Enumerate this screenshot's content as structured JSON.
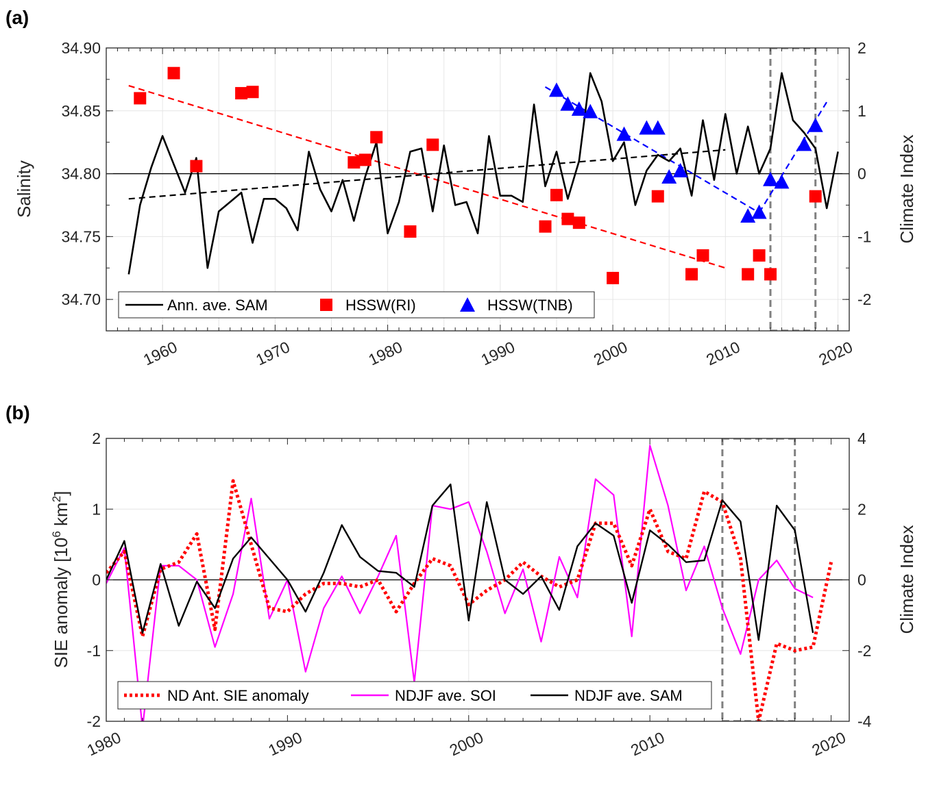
{
  "chart_data": [
    {
      "panel": "(a)",
      "type": "line",
      "xlim": [
        1955,
        2021
      ],
      "xticks": [
        1960,
        1970,
        1980,
        1990,
        2000,
        2010,
        2020
      ],
      "ylabel": "Salinity",
      "ylim": [
        34.675,
        34.9
      ],
      "yticks": [
        "34.70",
        "34.75",
        "34.80",
        "34.85",
        "34.90"
      ],
      "y2label": "Climate Index",
      "y2lim": [
        -2.5,
        2
      ],
      "y2ticks": [
        "-2",
        "-1",
        "0",
        "1",
        "2"
      ],
      "legend": [
        "Ann. ave. SAM",
        "HSSW(RI)",
        "HSSW(TNB)"
      ],
      "sam_annual": {
        "name": "Ann. ave. SAM",
        "axis": "right",
        "color": "#000000",
        "x": [
          1957,
          1958,
          1959,
          1960,
          1961,
          1962,
          1963,
          1964,
          1965,
          1966,
          1967,
          1968,
          1969,
          1970,
          1971,
          1972,
          1973,
          1974,
          1975,
          1976,
          1977,
          1978,
          1979,
          1980,
          1981,
          1982,
          1983,
          1984,
          1985,
          1986,
          1987,
          1988,
          1989,
          1990,
          1991,
          1992,
          1993,
          1994,
          1995,
          1996,
          1997,
          1998,
          1999,
          2000,
          2001,
          2002,
          2003,
          2004,
          2005,
          2006,
          2007,
          2008,
          2009,
          2010,
          2011,
          2012,
          2013,
          2014,
          2015,
          2016,
          2017,
          2018,
          2019,
          2020
        ],
        "y": [
          -1.6,
          -0.5,
          0.1,
          0.6,
          0.15,
          -0.3,
          0.25,
          -1.5,
          -0.6,
          -0.45,
          -0.3,
          -1.1,
          -0.4,
          -0.4,
          -0.55,
          -0.9,
          0.35,
          -0.25,
          -0.6,
          -0.1,
          -0.75,
          -0.05,
          0.5,
          -0.95,
          -0.45,
          0.35,
          0.4,
          -0.6,
          0.45,
          -0.5,
          -0.45,
          -0.95,
          0.6,
          -0.35,
          -0.35,
          -0.45,
          1.1,
          -0.2,
          0.35,
          -0.4,
          0.2,
          1.6,
          1.15,
          0.2,
          0.5,
          -0.5,
          0.05,
          0.3,
          0.2,
          0.4,
          -0.35,
          0.85,
          -0.1,
          0.95,
          0.0,
          0.75,
          0.0,
          0.4,
          1.6,
          0.85,
          0.65,
          0.4,
          -0.55,
          0.35
        ]
      },
      "sam_trend": {
        "name": "SAM trend",
        "axis": "right",
        "x": [
          1957,
          2010
        ],
        "y": [
          -0.4,
          0.38
        ],
        "color": "#000000"
      },
      "hssw_ri": {
        "name": "HSSW(RI)",
        "axis": "left",
        "color": "#ff0000",
        "x": [
          1958,
          1961,
          1963,
          1967,
          1968,
          1977,
          1978,
          1979,
          1982,
          1984,
          1994,
          1995,
          1996,
          1997,
          2000,
          2004,
          2007,
          2008,
          2012,
          2013,
          2014,
          2018
        ],
        "y": [
          34.86,
          34.88,
          34.806,
          34.864,
          34.865,
          34.809,
          34.811,
          34.829,
          34.754,
          34.823,
          34.758,
          34.783,
          34.764,
          34.761,
          34.717,
          34.782,
          34.72,
          34.735,
          34.72,
          34.735,
          34.72,
          34.782
        ]
      },
      "ri_trend": {
        "name": "HSSW(RI) trend",
        "axis": "left",
        "x": [
          1957,
          2010
        ],
        "y": [
          34.87,
          34.725
        ],
        "color": "#ff0000"
      },
      "hssw_tnb": {
        "name": "HSSW(TNB)",
        "axis": "left",
        "color": "#0000ff",
        "x": [
          1995,
          1996,
          1997,
          1998,
          2001,
          2003,
          2004,
          2005,
          2006,
          2012,
          2013,
          2014,
          2015,
          2017,
          2018
        ],
        "y": [
          34.866,
          34.855,
          34.851,
          34.849,
          34.831,
          34.836,
          34.836,
          34.797,
          34.802,
          34.766,
          34.769,
          34.795,
          34.793,
          34.823,
          34.838
        ]
      },
      "tnb_trend_1": {
        "name": "TNB trend 1995-2013",
        "axis": "left",
        "x": [
          1994,
          2013
        ],
        "y": [
          34.869,
          34.769
        ],
        "color": "#0000ff"
      },
      "tnb_trend_2": {
        "name": "TNB trend 2013-2019",
        "axis": "left",
        "x": [
          2013,
          2019
        ],
        "y": [
          34.769,
          34.857
        ],
        "color": "#0000ff"
      },
      "highlight_box": {
        "x": [
          2014,
          2018
        ]
      }
    },
    {
      "panel": "(b)",
      "type": "line",
      "xlim": [
        1980,
        2021
      ],
      "xticks": [
        1980,
        1990,
        2000,
        2010,
        2020
      ],
      "ylabel": "SIE anomaly [10⁶ km²]",
      "ylabel_parts": {
        "main": "SIE anomaly [10",
        "sup1": "6",
        "mid": " km",
        "sup2": "2",
        "end": "]"
      },
      "ylim": [
        -2,
        2
      ],
      "yticks": [
        "-2",
        "-1",
        "0",
        "1",
        "2"
      ],
      "y2label": "Climate Index",
      "y2lim": [
        -4,
        4
      ],
      "y2ticks": [
        "-4",
        "-2",
        "0",
        "2",
        "4"
      ],
      "legend": [
        "ND Ant. SIE anomaly",
        "NDJF ave. SOI",
        "NDJF ave. SAM"
      ],
      "sie": {
        "name": "ND Ant. SIE anomaly",
        "axis": "left",
        "color": "#ff0000",
        "x": [
          1980,
          1981,
          1982,
          1983,
          1984,
          1985,
          1986,
          1987,
          1988,
          1989,
          1990,
          1991,
          1992,
          1993,
          1994,
          1995,
          1996,
          1997,
          1998,
          1999,
          2000,
          2001,
          2002,
          2003,
          2004,
          2005,
          2006,
          2007,
          2008,
          2009,
          2010,
          2011,
          2012,
          2013,
          2014,
          2015,
          2016,
          2017,
          2018,
          2019,
          2020
        ],
        "y": [
          0.1,
          0.4,
          -0.8,
          0.15,
          0.25,
          0.65,
          -0.7,
          1.4,
          0.5,
          -0.4,
          -0.45,
          -0.2,
          -0.05,
          -0.05,
          -0.1,
          0.0,
          -0.45,
          -0.05,
          0.3,
          0.2,
          -0.35,
          -0.15,
          0.0,
          0.25,
          0.05,
          -0.1,
          0.0,
          0.8,
          0.8,
          0.2,
          1.0,
          0.4,
          0.3,
          1.25,
          1.1,
          0.3,
          -2.0,
          -0.9,
          -1.0,
          -0.95,
          0.25
        ]
      },
      "soi": {
        "name": "NDJF ave. SOI",
        "axis": "right",
        "color": "#ff00ff",
        "x": [
          1980,
          1981,
          1982,
          1983,
          1984,
          1985,
          1986,
          1987,
          1988,
          1989,
          1990,
          1991,
          1992,
          1993,
          1994,
          1995,
          1996,
          1997,
          1998,
          1999,
          2000,
          2001,
          2002,
          2003,
          2004,
          2005,
          2006,
          2007,
          2008,
          2009,
          2010,
          2011,
          2012,
          2013,
          2014,
          2015,
          2016,
          2017,
          2018,
          2019
        ],
        "y": [
          -0.1,
          0.9,
          -4.2,
          0.4,
          0.4,
          0.0,
          -1.9,
          -0.4,
          2.3,
          -1.1,
          0.0,
          -2.6,
          -0.8,
          0.1,
          -0.95,
          0.1,
          1.25,
          -2.9,
          2.1,
          2.0,
          2.2,
          0.8,
          -0.95,
          0.3,
          -1.75,
          0.65,
          -0.5,
          2.85,
          2.4,
          -1.6,
          3.8,
          2.1,
          -0.3,
          0.95,
          -0.8,
          -2.1,
          0.0,
          0.55,
          -0.25,
          -0.5
        ]
      },
      "sam": {
        "name": "NDJF ave. SAM",
        "axis": "right",
        "color": "#000000",
        "x": [
          1980,
          1981,
          1982,
          1983,
          1984,
          1985,
          1986,
          1987,
          1988,
          1989,
          1990,
          1991,
          1992,
          1993,
          1994,
          1995,
          1996,
          1997,
          1998,
          1999,
          2000,
          2001,
          2002,
          2003,
          2004,
          2005,
          2006,
          2007,
          2008,
          2009,
          2010,
          2011,
          2012,
          2013,
          2014,
          2015,
          2016,
          2017,
          2018,
          2019
        ],
        "y": [
          0.0,
          1.1,
          -1.5,
          0.45,
          -1.3,
          -0.05,
          -0.8,
          0.6,
          1.2,
          0.6,
          0.0,
          -0.9,
          0.2,
          1.55,
          0.65,
          0.25,
          0.2,
          -0.2,
          2.1,
          2.7,
          -1.15,
          2.2,
          0.0,
          -0.4,
          0.1,
          -0.85,
          0.95,
          1.6,
          1.25,
          -0.65,
          1.4,
          1.0,
          0.5,
          0.55,
          2.25,
          1.65,
          -1.7,
          2.1,
          1.4,
          -1.5
        ]
      },
      "highlight_box": {
        "x": [
          2014,
          2018
        ]
      }
    }
  ]
}
